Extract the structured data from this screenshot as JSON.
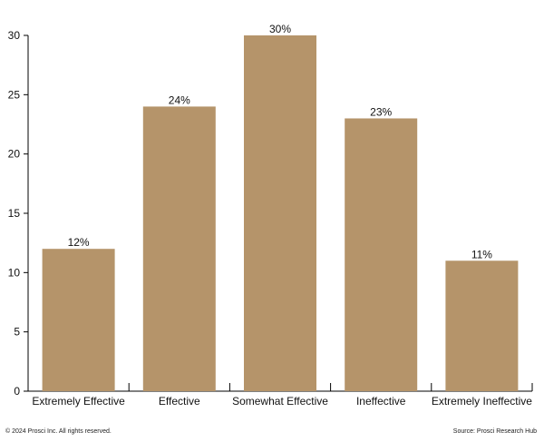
{
  "chart_data": {
    "type": "bar",
    "categories": [
      "Extremely Effective",
      "Effective",
      "Somewhat Effective",
      "Ineffective",
      "Extremely Ineffective"
    ],
    "values": [
      12,
      24,
      30,
      23,
      11
    ],
    "data_labels": [
      "12%",
      "24%",
      "30%",
      "23%",
      "11%"
    ],
    "ylim": [
      0,
      30
    ],
    "yticks": [
      0,
      5,
      10,
      15,
      20,
      25,
      30
    ],
    "bar_color": "#b5946a",
    "grid": false,
    "title": "",
    "xlabel": "",
    "ylabel": ""
  },
  "footer": {
    "copyright": "© 2024 Prosci Inc. All rights reserved.",
    "source": "Source: Prosci Research Hub"
  }
}
